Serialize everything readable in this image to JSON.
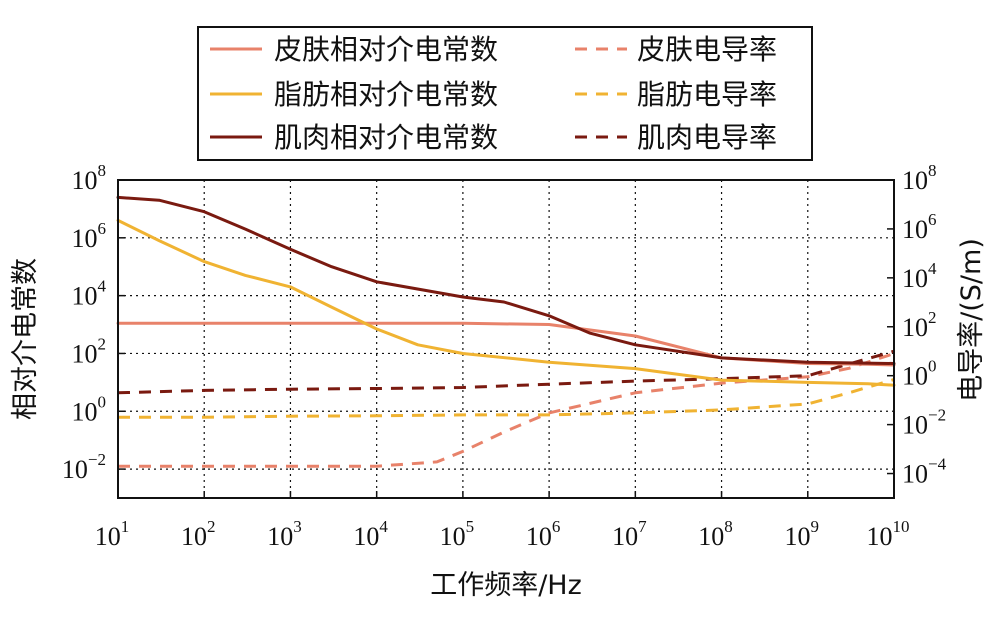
{
  "chart_data": {
    "type": "line",
    "xlabel": "工作频率/Hz",
    "ylabel_left": "相对介电常数",
    "ylabel_right": "电导率/(S/m)",
    "x_scale": "log10",
    "y_scale_left": "log10",
    "y_scale_right": "log10",
    "xlim": [
      10,
      10000000000
    ],
    "ylim_left": [
      0.001,
      100000000
    ],
    "ylim_right": [
      1e-05,
      100000000
    ],
    "x_tick_exponents": [
      1,
      2,
      3,
      4,
      5,
      6,
      7,
      8,
      9,
      10
    ],
    "left_tick_exponents": [
      -2,
      0,
      2,
      4,
      6,
      8
    ],
    "right_tick_exponents": [
      -4,
      -2,
      0,
      2,
      4,
      6,
      8
    ],
    "tick_base": "10",
    "grid": true,
    "legend_position": "top",
    "series": [
      {
        "name": "皮肤相对介电常数",
        "axis": "left",
        "style": "solid",
        "color": "#e8826a",
        "x": [
          10,
          100,
          1000,
          10000,
          100000,
          1000000,
          10000000,
          100000000,
          1000000000,
          5000000000,
          10000000000
        ],
        "y": [
          1100,
          1100,
          1100,
          1100,
          1100,
          1000,
          400,
          70,
          45,
          42,
          40
        ]
      },
      {
        "name": "脂肪相对介电常数",
        "axis": "left",
        "style": "solid",
        "color": "#f0b332",
        "x": [
          10,
          30,
          100,
          300,
          1000,
          3000,
          10000,
          30000,
          100000,
          1000000,
          10000000,
          100000000,
          1000000000,
          5000000000,
          10000000000
        ],
        "y": [
          4000000,
          800000,
          150000,
          50000,
          20000,
          4000,
          700,
          200,
          100,
          50,
          30,
          12,
          10,
          9,
          8
        ]
      },
      {
        "name": "肌肉相对介电常数",
        "axis": "left",
        "style": "solid",
        "color": "#7a1a10",
        "x": [
          10,
          30,
          100,
          300,
          1000,
          3000,
          10000,
          100000,
          300000,
          1000000,
          3000000,
          10000000,
          100000000,
          1000000000,
          10000000000
        ],
        "y": [
          25000000,
          20000000,
          8000000,
          2000000,
          400000,
          100000,
          30000,
          9000,
          6000,
          2000,
          500,
          200,
          70,
          50,
          45
        ]
      },
      {
        "name": "皮肤电导率",
        "axis": "right",
        "style": "dashed",
        "color": "#e8826a",
        "x": [
          10,
          100,
          1000,
          10000,
          50000,
          100000,
          300000,
          1000000,
          10000000,
          100000000,
          1000000000,
          3000000000,
          10000000000
        ],
        "y": [
          0.0002,
          0.0002,
          0.0002,
          0.0002,
          0.0003,
          0.0008,
          0.005,
          0.03,
          0.2,
          0.5,
          0.9,
          2,
          8
        ]
      },
      {
        "name": "脂肪电导率",
        "axis": "right",
        "style": "dashed",
        "color": "#f0b332",
        "x": [
          10,
          100,
          1000,
          10000,
          100000,
          1000000,
          10000000,
          100000000,
          1000000000,
          3000000000,
          10000000000
        ],
        "y": [
          0.02,
          0.02,
          0.022,
          0.023,
          0.025,
          0.025,
          0.03,
          0.04,
          0.07,
          0.2,
          0.7
        ]
      },
      {
        "name": "肌肉电导率",
        "axis": "right",
        "style": "dashed",
        "color": "#7a1a10",
        "x": [
          10,
          100,
          1000,
          10000,
          100000,
          1000000,
          10000000,
          100000000,
          1000000000,
          3000000000,
          10000000000
        ],
        "y": [
          0.2,
          0.25,
          0.28,
          0.3,
          0.33,
          0.45,
          0.6,
          0.75,
          1,
          3,
          10
        ]
      }
    ]
  }
}
